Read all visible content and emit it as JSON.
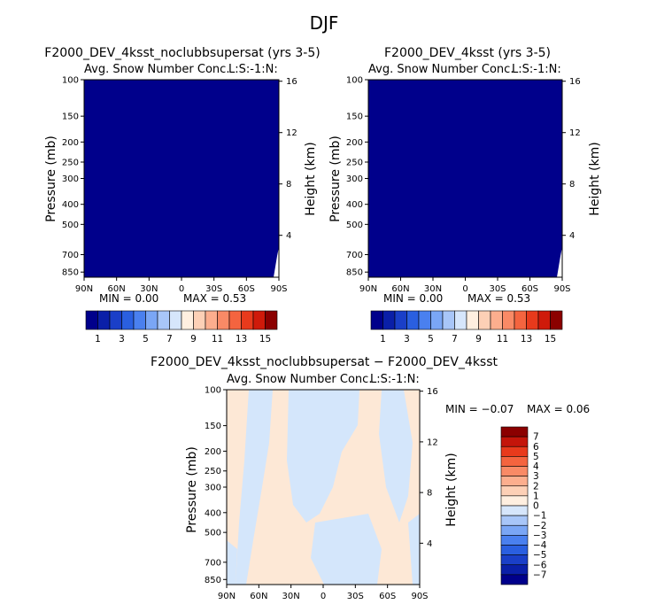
{
  "figure": {
    "season": "DJF"
  },
  "panels": [
    {
      "title": "F2000_DEV_4ksst_noclubbsupersat (yrs 3-5)",
      "subtitle": "Avg. Snow Number Conc.",
      "units_label": "L:S:-1:N:",
      "ylabel": "Pressure (mb)",
      "y2label": "Height (km)",
      "stats": {
        "min": "MIN =    0.00",
        "max": "MAX =    0.53"
      }
    },
    {
      "title": "F2000_DEV_4ksst (yrs 3-5)",
      "subtitle": "Avg. Snow Number Conc.",
      "units_label": "L:S:-1:N:",
      "ylabel": "Pressure (mb)",
      "y2label": "Height (km)",
      "stats": {
        "min": "MIN =    0.00",
        "max": "MAX =    0.53"
      }
    },
    {
      "title": "F2000_DEV_4ksst_noclubbsupersat − F2000_DEV_4ksst",
      "subtitle": "Avg. Snow Number Conc.",
      "units_label": "L:S:-1:N:",
      "ylabel": "Pressure (mb)",
      "y2label": "Height (km)",
      "stats": {
        "min": "MIN =   −0.07",
        "max": "MAX =    0.06"
      }
    }
  ],
  "chart_data": [
    {
      "type": "heatmap",
      "title": "F2000_DEV_4ksst_noclubbsupersat (yrs 3-5)",
      "subtitle": "Avg. Snow Number Conc.",
      "xlabel": "",
      "ylabel": "Pressure (mb)",
      "y2label": "Height (km)",
      "x_ticks": [
        "90N",
        "60N",
        "30N",
        "0",
        "30S",
        "60S",
        "90S"
      ],
      "x_range": [
        90,
        -90
      ],
      "y_ticks": [
        100,
        150,
        200,
        250,
        300,
        400,
        500,
        700,
        850
      ],
      "y_range": [
        100,
        900
      ],
      "y_scale": "log",
      "y2_ticks": [
        16,
        12,
        8,
        4
      ],
      "field_description_value": 0.0,
      "min": 0.0,
      "max": 0.53,
      "colorbar": {
        "orientation": "horizontal",
        "labels": [
          "1",
          "3",
          "5",
          "7",
          "9",
          "11",
          "13",
          "15"
        ],
        "colors": [
          "#00008b",
          "#0a1fa8",
          "#1a3fc8",
          "#2a5fe0",
          "#4a80ef",
          "#7aa6f5",
          "#a8c6f8",
          "#d6e6fb",
          "#ffefe0",
          "#fdd0b6",
          "#fcae8e",
          "#f98a66",
          "#f4643f",
          "#e83a1c",
          "#cf1a0a",
          "#8b0000"
        ]
      }
    },
    {
      "type": "heatmap",
      "title": "F2000_DEV_4ksst (yrs 3-5)",
      "subtitle": "Avg. Snow Number Conc.",
      "xlabel": "",
      "ylabel": "Pressure (mb)",
      "y2label": "Height (km)",
      "x_ticks": [
        "90N",
        "60N",
        "30N",
        "0",
        "30S",
        "60S",
        "90S"
      ],
      "x_range": [
        90,
        -90
      ],
      "y_ticks": [
        100,
        150,
        200,
        250,
        300,
        400,
        500,
        700,
        850
      ],
      "y_range": [
        100,
        900
      ],
      "y_scale": "log",
      "y2_ticks": [
        16,
        12,
        8,
        4
      ],
      "field_description_value": 0.0,
      "min": 0.0,
      "max": 0.53,
      "colorbar": {
        "orientation": "horizontal",
        "labels": [
          "1",
          "3",
          "5",
          "7",
          "9",
          "11",
          "13",
          "15"
        ],
        "colors": [
          "#00008b",
          "#0a1fa8",
          "#1a3fc8",
          "#2a5fe0",
          "#4a80ef",
          "#7aa6f5",
          "#a8c6f8",
          "#d6e6fb",
          "#ffefe0",
          "#fdd0b6",
          "#fcae8e",
          "#f98a66",
          "#f4643f",
          "#e83a1c",
          "#cf1a0a",
          "#8b0000"
        ]
      }
    },
    {
      "type": "heatmap",
      "title": "F2000_DEV_4ksst_noclubbsupersat − F2000_DEV_4ksst",
      "subtitle": "Avg. Snow Number Conc.",
      "xlabel": "",
      "ylabel": "Pressure (mb)",
      "y2label": "Height (km)",
      "x_ticks": [
        "90N",
        "60N",
        "30N",
        "0",
        "30S",
        "60S",
        "90S"
      ],
      "x_range": [
        90,
        -90
      ],
      "y_ticks": [
        100,
        150,
        200,
        250,
        300,
        400,
        500,
        700,
        850
      ],
      "y_range": [
        100,
        900
      ],
      "y_scale": "log",
      "y2_ticks": [
        16,
        12,
        8,
        4
      ],
      "min": -0.07,
      "max": 0.06,
      "colorbar": {
        "orientation": "vertical",
        "labels": [
          "7",
          "6",
          "5",
          "4",
          "3",
          "2",
          "1",
          "0",
          "−1",
          "−2",
          "−3",
          "−4",
          "−5",
          "−6",
          "−7"
        ],
        "colors": [
          "#8b0000",
          "#c4150a",
          "#e83a1c",
          "#f4643f",
          "#f98a66",
          "#fcae8e",
          "#fdd0b6",
          "#ffefe0",
          "#d6e6fb",
          "#a8c6f8",
          "#7aa6f5",
          "#4a80ef",
          "#2a5fe0",
          "#1a3fc8",
          "#0a1fa8",
          "#00008b"
        ],
        "plot_colors": {
          "positive": "#fde8d6",
          "negative": "#d4e6fb"
        }
      }
    }
  ]
}
